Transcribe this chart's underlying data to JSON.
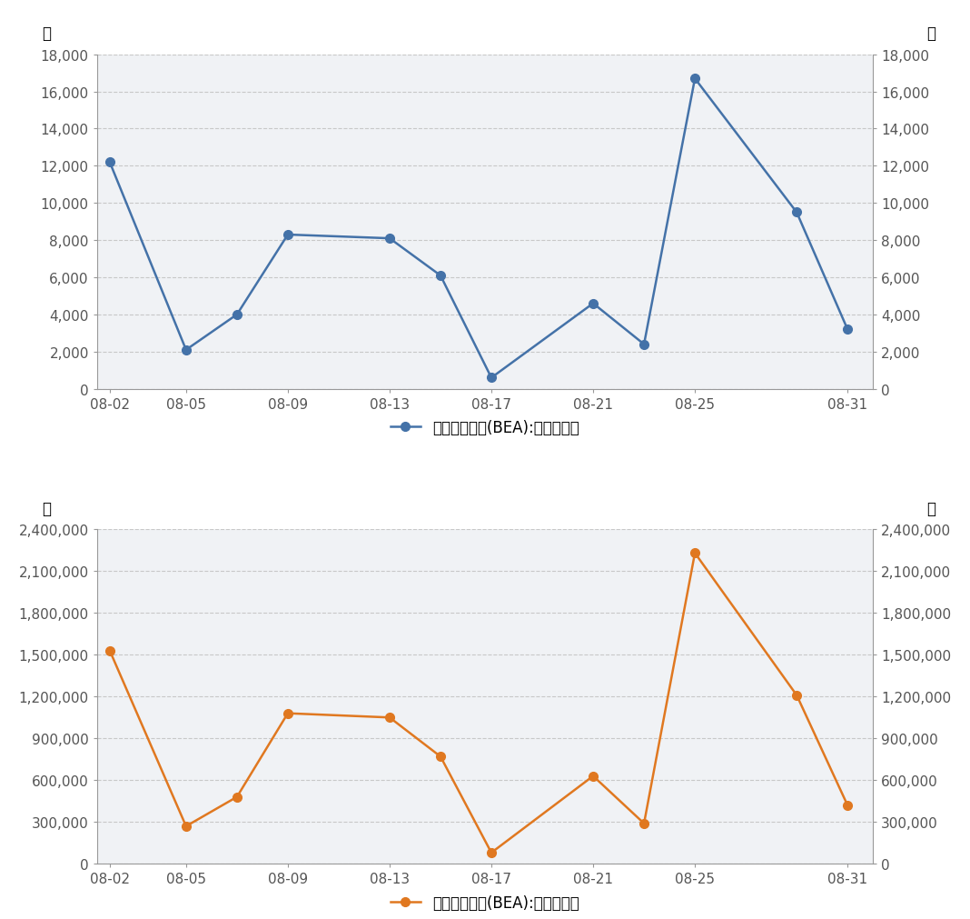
{
  "chart1": {
    "x_positions": [
      0,
      3,
      5,
      7,
      11,
      13,
      15,
      19,
      21,
      23,
      27,
      29
    ],
    "y_values": [
      12200,
      2100,
      4000,
      8300,
      8100,
      6100,
      600,
      4600,
      2400,
      16700,
      9500,
      3200
    ],
    "color": "#4472a8",
    "ylabel_left": "吨",
    "ylabel_right": "吨",
    "ylim": [
      0,
      18000
    ],
    "yticks": [
      0,
      2000,
      4000,
      6000,
      8000,
      10000,
      12000,
      14000,
      16000,
      18000
    ],
    "legend_label": "北京碳排放权(BEA):当日成交量"
  },
  "chart2": {
    "x_positions": [
      0,
      3,
      5,
      7,
      11,
      13,
      15,
      19,
      21,
      23,
      27,
      29
    ],
    "y_values": [
      1530000,
      270000,
      480000,
      1080000,
      1050000,
      770000,
      80000,
      630000,
      290000,
      2230000,
      1210000,
      420000
    ],
    "color": "#e07820",
    "ylabel_left": "元",
    "ylabel_right": "元",
    "ylim": [
      0,
      2400000
    ],
    "yticks": [
      0,
      300000,
      600000,
      900000,
      1200000,
      1500000,
      1800000,
      2100000,
      2400000
    ],
    "legend_label": "北京碳排放权(BEA):当日成交额"
  },
  "x_tick_labels": [
    "08-02",
    "08-05",
    "08-09",
    "08-13",
    "08-17",
    "08-21",
    "08-25",
    "08-31"
  ],
  "x_tick_positions": [
    0,
    3,
    7,
    11,
    15,
    19,
    23,
    29
  ],
  "background_color": "#ffffff",
  "plot_bg_color": "#f0f2f5",
  "grid_color": "#c8c8c8",
  "spine_color": "#999999",
  "tick_color": "#555555",
  "marker_size": 7,
  "line_width": 1.8,
  "tick_label_fontsize": 11,
  "ylabel_fontsize": 12,
  "legend_fontsize": 12
}
